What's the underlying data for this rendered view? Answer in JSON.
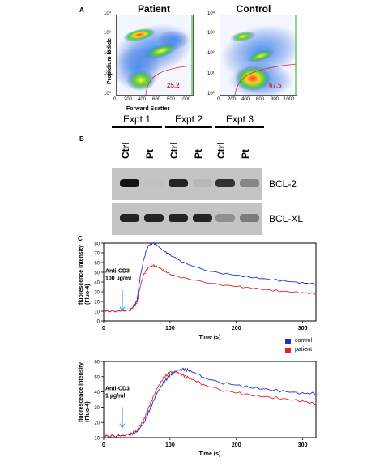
{
  "panel_a": {
    "letter": "A",
    "left_title": "Patient",
    "right_title": "Control",
    "y_axis_label": "Propidium Iodide",
    "x_axis_label": "Forward Scatter",
    "y_ticks": [
      "10⁴",
      "10³",
      "10²",
      "10¹",
      "10⁰"
    ],
    "x_ticks": [
      "0",
      "200",
      "400",
      "600",
      "800",
      "1000"
    ],
    "left_gate_value": "25.2",
    "right_gate_value": "67.5"
  },
  "panel_b": {
    "letter": "B",
    "experiments": [
      "Expt 1",
      "Expt 2",
      "Expt 3"
    ],
    "lanes": [
      "Ctrl",
      "Pt",
      "Ctrl",
      "Pt",
      "Ctrl",
      "Pt"
    ],
    "bands": [
      "BCL-2",
      "BCL-XL"
    ],
    "band_intensity": {
      "BCL-2": [
        1.0,
        0.08,
        0.95,
        0.2,
        0.9,
        0.55
      ],
      "BCL-XL": [
        0.95,
        0.95,
        0.95,
        0.95,
        0.5,
        0.6
      ]
    }
  },
  "panel_c": {
    "letter": "C",
    "legend": [
      {
        "label": "control",
        "color": "#1f2fd6"
      },
      {
        "label": "patient",
        "color": "#e0232a"
      }
    ]
  },
  "chart_data": [
    {
      "type": "line",
      "xlabel": "Time (s)",
      "ylabel": "fluorescence intensity (Fluo-4)",
      "x_ticks": [
        "0",
        "100",
        "200",
        "300"
      ],
      "y_ticks": [
        "0",
        "10",
        "20",
        "30",
        "40",
        "50",
        "60",
        "70",
        "80"
      ],
      "xlim": [
        0,
        320
      ],
      "ylim": [
        0,
        80
      ],
      "annotation": "Anti-CD3\n100 µg/ml",
      "arrow_x": 28,
      "series": [
        {
          "name": "control",
          "color": "#1f2fd6",
          "x": [
            0,
            20,
            40,
            50,
            55,
            60,
            65,
            70,
            75,
            80,
            90,
            100,
            120,
            150,
            180,
            220,
            260,
            300,
            320
          ],
          "y": [
            10,
            10,
            11,
            20,
            45,
            62,
            74,
            79,
            80,
            78,
            72,
            68,
            60,
            53,
            49,
            45,
            42,
            39,
            38
          ]
        },
        {
          "name": "patient",
          "color": "#e0232a",
          "x": [
            0,
            20,
            40,
            50,
            55,
            60,
            65,
            70,
            75,
            80,
            90,
            100,
            120,
            150,
            180,
            220,
            260,
            300,
            320
          ],
          "y": [
            10,
            10,
            11,
            18,
            35,
            47,
            53,
            56,
            57,
            56,
            52,
            48,
            44,
            40,
            37,
            34,
            31,
            29,
            28
          ]
        }
      ]
    },
    {
      "type": "line",
      "xlabel": "Time (s)",
      "ylabel": "fluorescence intensity (Fluo-4)",
      "x_ticks": [
        "0",
        "100",
        "200",
        "300"
      ],
      "y_ticks": [
        "10",
        "20",
        "30",
        "40",
        "50",
        "60"
      ],
      "xlim": [
        0,
        320
      ],
      "ylim": [
        10,
        60
      ],
      "annotation": "Anti-CD3\n1 µg/ml",
      "arrow_x": 28,
      "series": [
        {
          "name": "control",
          "color": "#1f2fd6",
          "x": [
            0,
            20,
            40,
            50,
            60,
            70,
            80,
            90,
            100,
            110,
            120,
            130,
            150,
            180,
            220,
            260,
            300,
            320
          ],
          "y": [
            11,
            11,
            12,
            14,
            19,
            29,
            39,
            46,
            51,
            54,
            55,
            54,
            50,
            46,
            43,
            41,
            39,
            39
          ]
        },
        {
          "name": "patient",
          "color": "#e0232a",
          "x": [
            0,
            20,
            40,
            50,
            60,
            70,
            80,
            90,
            100,
            110,
            120,
            130,
            150,
            180,
            220,
            260,
            300,
            320
          ],
          "y": [
            11,
            11,
            12,
            15,
            21,
            32,
            42,
            49,
            53,
            53,
            51,
            49,
            45,
            41,
            38,
            36,
            34,
            32
          ]
        }
      ]
    }
  ]
}
